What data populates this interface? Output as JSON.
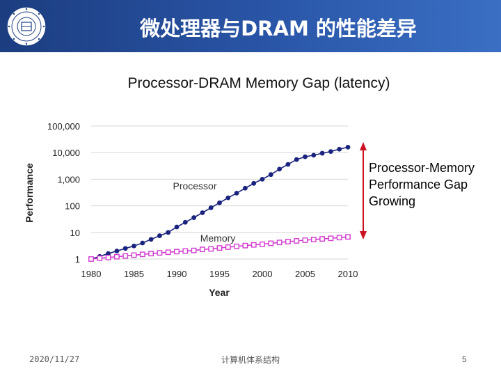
{
  "slide": {
    "title": "微处理器与DRAM 的性能差异",
    "logo_icon": "university-seal-icon"
  },
  "annotation": {
    "lines": [
      "Processor-Memory",
      "Performance Gap",
      "Growing"
    ],
    "arrow_color": "#cc1122"
  },
  "footer": {
    "date": "2020/11/27",
    "center": "计算机体系结构",
    "page": "5"
  },
  "colors": {
    "header": "#1c3d80",
    "processor": "#1a237e",
    "memory": "#d23bd0"
  },
  "chart_data": {
    "type": "line",
    "title": "Processor-DRAM Memory Gap (latency)",
    "xlabel": "Year",
    "ylabel": "Performance",
    "yscale": "log",
    "ylim": [
      1,
      100000
    ],
    "xlim": [
      1980,
      2010
    ],
    "xticks": [
      1980,
      1985,
      1990,
      1995,
      2000,
      2005,
      2010
    ],
    "xtick_labels": [
      "1980",
      "1985",
      "1990",
      "1995",
      "2000",
      "2005",
      "2010"
    ],
    "yticks": [
      1,
      10,
      100,
      1000,
      10000,
      100000
    ],
    "ytick_labels": [
      "1",
      "10",
      "100",
      "1,000",
      "10,000",
      "100,000"
    ],
    "grid": true,
    "series": [
      {
        "name": "Processor",
        "label": "Processor",
        "marker": "filled-circle",
        "x": [
          1980,
          1981,
          1982,
          1983,
          1984,
          1985,
          1986,
          1987,
          1988,
          1989,
          1990,
          1991,
          1992,
          1993,
          1994,
          1995,
          1996,
          1997,
          1998,
          1999,
          2000,
          2001,
          2002,
          2003,
          2004,
          2005,
          2006,
          2007,
          2008,
          2009,
          2010
        ],
        "values": [
          1,
          1.25,
          1.6,
          2,
          2.5,
          3.1,
          4,
          5.5,
          7.5,
          10,
          16,
          24,
          36,
          55,
          85,
          130,
          200,
          300,
          460,
          700,
          1000,
          1500,
          2400,
          3600,
          5500,
          7000,
          8000,
          9500,
          11000,
          13500,
          16000
        ]
      },
      {
        "name": "Memory",
        "label": "Memory",
        "marker": "open-square",
        "x": [
          1980,
          1981,
          1982,
          1983,
          1984,
          1985,
          1986,
          1987,
          1988,
          1989,
          1990,
          1991,
          1992,
          1993,
          1994,
          1995,
          1996,
          1997,
          1998,
          1999,
          2000,
          2001,
          2002,
          2003,
          2004,
          2005,
          2006,
          2007,
          2008,
          2009,
          2010
        ],
        "values": [
          1,
          1.07,
          1.14,
          1.22,
          1.3,
          1.4,
          1.5,
          1.6,
          1.7,
          1.8,
          1.9,
          2.0,
          2.1,
          2.3,
          2.4,
          2.6,
          2.8,
          3.0,
          3.2,
          3.4,
          3.6,
          3.9,
          4.2,
          4.5,
          4.8,
          5.1,
          5.4,
          5.7,
          6.0,
          6.4,
          6.8
        ]
      }
    ]
  }
}
